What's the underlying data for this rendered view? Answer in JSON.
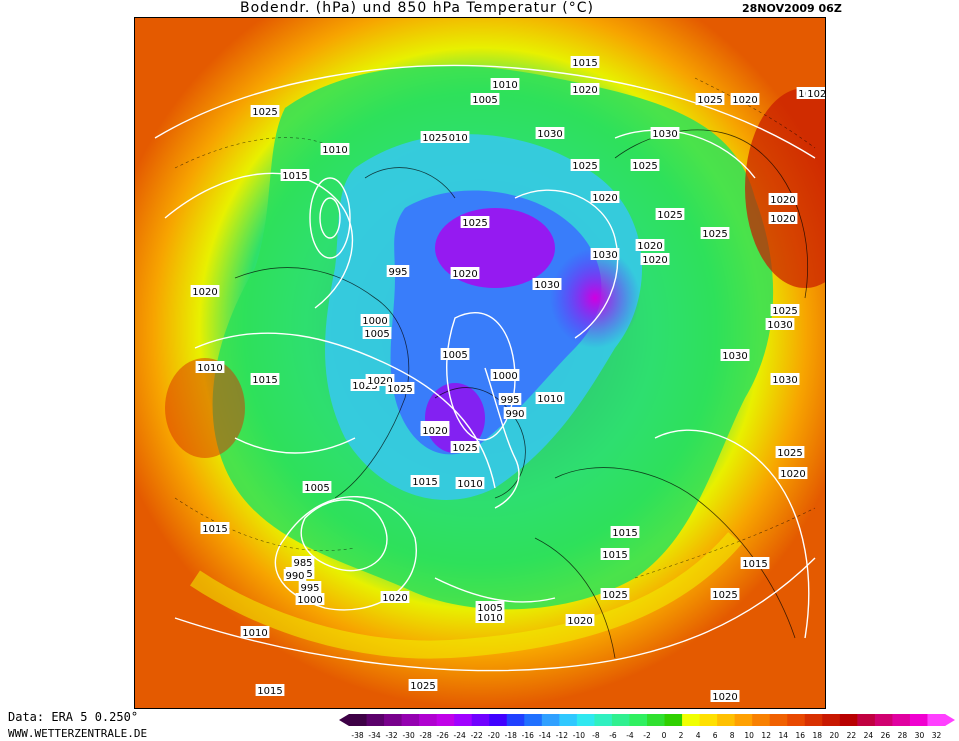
{
  "header": {
    "title": "Bodendr. (hPa) und 850 hPa Temperatur (°C)",
    "date": "28NOV2009 06Z"
  },
  "footer": {
    "data_source": "Data: ERA 5 0.250°",
    "website": "WWW.WETTERZENTRALE.DE"
  },
  "legend": {
    "ticks": [
      "-38",
      "-34",
      "-32",
      "-30",
      "-28",
      "-26",
      "-24",
      "-22",
      "-20",
      "-18",
      "-16",
      "-14",
      "-12",
      "-10",
      "-8",
      "-6",
      "-4",
      "-2",
      "0",
      "2",
      "4",
      "6",
      "8",
      "10",
      "12",
      "14",
      "16",
      "18",
      "20",
      "22",
      "24",
      "26",
      "28",
      "30",
      "32"
    ],
    "colors": [
      "#3d0045",
      "#5a006a",
      "#78008c",
      "#9400b0",
      "#b000d0",
      "#c000e8",
      "#a000ff",
      "#7000ff",
      "#4000ff",
      "#2040ff",
      "#2070ff",
      "#30a0ff",
      "#30c8ff",
      "#30e8f0",
      "#30f0c0",
      "#30f090",
      "#30f060",
      "#30e030",
      "#30d000",
      "#f0ff00",
      "#ffe000",
      "#ffc000",
      "#ffa000",
      "#f88000",
      "#f06000",
      "#e84800",
      "#d83000",
      "#c81800",
      "#b80000",
      "#c00040",
      "#d00070",
      "#e000a0",
      "#f000d0",
      "#ff40ff"
    ]
  },
  "map": {
    "pressure_labels": [
      {
        "text": "1010"
      },
      {
        "text": "1015"
      },
      {
        "text": "1010"
      },
      {
        "text": "1005"
      },
      {
        "text": "1020"
      },
      {
        "text": "1025"
      },
      {
        "text": "1020"
      },
      {
        "text": "1030"
      },
      {
        "text": "1030"
      },
      {
        "text": "1025"
      },
      {
        "text": "1020"
      },
      {
        "text": "1010"
      },
      {
        "text": "1025"
      },
      {
        "text": "1010"
      },
      {
        "text": "1015"
      },
      {
        "text": "1025"
      },
      {
        "text": "1025"
      },
      {
        "text": "1020"
      },
      {
        "text": "1020"
      },
      {
        "text": "1025"
      },
      {
        "text": "1025"
      },
      {
        "text": "1020"
      },
      {
        "text": "1030"
      },
      {
        "text": "1025"
      },
      {
        "text": "995"
      },
      {
        "text": "1020"
      },
      {
        "text": "1020"
      },
      {
        "text": "1030"
      },
      {
        "text": "1030"
      },
      {
        "text": "1025"
      },
      {
        "text": "1020"
      },
      {
        "text": "1030"
      },
      {
        "text": "1025"
      },
      {
        "text": "1000"
      },
      {
        "text": "1005"
      },
      {
        "text": "1015"
      },
      {
        "text": "1005"
      },
      {
        "text": "1025"
      },
      {
        "text": "1025"
      },
      {
        "text": "1030"
      },
      {
        "text": "1015"
      },
      {
        "text": "1010"
      },
      {
        "text": "1020"
      },
      {
        "text": "1025"
      },
      {
        "text": "1000"
      },
      {
        "text": "995"
      },
      {
        "text": "990"
      },
      {
        "text": "1010"
      },
      {
        "text": "1010"
      },
      {
        "text": "1020"
      },
      {
        "text": "1025"
      },
      {
        "text": "1015"
      },
      {
        "text": "1010"
      },
      {
        "text": "1005"
      },
      {
        "text": "1015"
      },
      {
        "text": "1015"
      },
      {
        "text": "985"
      },
      {
        "text": "990"
      },
      {
        "text": "995"
      },
      {
        "text": "1000"
      },
      {
        "text": "1015"
      },
      {
        "text": "1015"
      },
      {
        "text": "1025"
      },
      {
        "text": "1025"
      },
      {
        "text": "1020"
      },
      {
        "text": "1020"
      },
      {
        "text": "1010"
      },
      {
        "text": "1005"
      },
      {
        "text": "1010"
      },
      {
        "text": "1020"
      },
      {
        "text": "1025"
      },
      {
        "text": "1015"
      },
      {
        "text": "1025"
      },
      {
        "text": "1020"
      },
      {
        "text": "1010"
      },
      {
        "text": "1015"
      },
      {
        "text": "1020"
      },
      {
        "text": "1015"
      },
      {
        "text": "1025"
      },
      {
        "text": "1030"
      }
    ]
  }
}
